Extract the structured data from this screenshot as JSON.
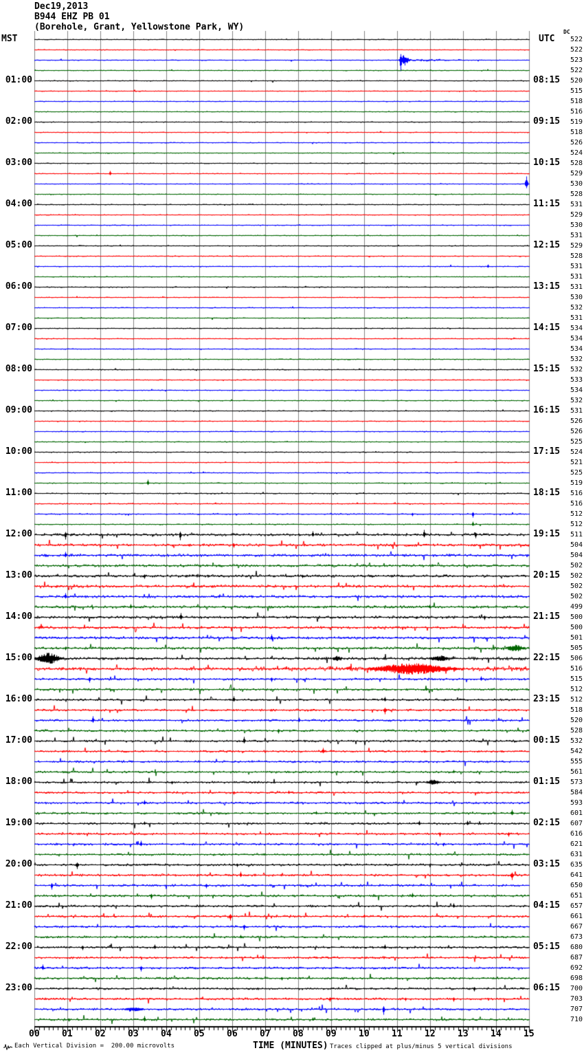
{
  "header": {
    "date": "Dec19,2013",
    "station": "B944 EHZ PB 01",
    "location": "(Borehole, Grant, Yellowstone Park, WY)"
  },
  "labels": {
    "left_axis": "MST",
    "right_axis": "UTC",
    "dc_header": "DC"
  },
  "footer": {
    "left": "Each Vertical Division =  200.00 microvolts",
    "center": "TIME (MINUTES)",
    "right": "Traces clipped at plus/minus 5 vertical divisions"
  },
  "chart_data": {
    "type": "line",
    "subtype": "helicorder-seismogram",
    "minutes_per_line": 15,
    "x_axis": {
      "label": "TIME (MINUTES)",
      "ticks": [
        "00",
        "01",
        "02",
        "03",
        "04",
        "05",
        "06",
        "07",
        "08",
        "09",
        "10",
        "11",
        "12",
        "13",
        "14",
        "15"
      ],
      "range_minutes": [
        0,
        15
      ]
    },
    "trace_color_cycle": [
      "#000000",
      "#ff0000",
      "#0000ff",
      "#006600"
    ],
    "grid_color": "#808080",
    "left_time_labels": [
      "01:00",
      "02:00",
      "03:00",
      "04:00",
      "05:00",
      "06:00",
      "07:00",
      "08:00",
      "09:00",
      "10:00",
      "11:00",
      "12:00",
      "13:00",
      "14:00",
      "15:00",
      "16:00",
      "17:00",
      "18:00",
      "19:00",
      "20:00",
      "21:00",
      "22:00",
      "23:00"
    ],
    "right_time_labels": [
      "08:15",
      "09:15",
      "10:15",
      "11:15",
      "12:15",
      "13:15",
      "14:15",
      "15:15",
      "16:15",
      "17:15",
      "18:15",
      "19:15",
      "20:15",
      "21:15",
      "22:15",
      "23:15",
      "00:15",
      "01:15",
      "02:15",
      "03:15",
      "04:15",
      "05:15",
      "06:15"
    ],
    "dc_values": [
      522,
      522,
      523,
      522,
      520,
      515,
      518,
      516,
      519,
      518,
      526,
      524,
      528,
      529,
      530,
      528,
      531,
      529,
      530,
      531,
      529,
      528,
      531,
      531,
      531,
      530,
      532,
      531,
      534,
      534,
      534,
      532,
      532,
      533,
      534,
      532,
      531,
      526,
      526,
      525,
      524,
      521,
      525,
      519,
      516,
      516,
      512,
      512,
      511,
      504,
      504,
      502,
      502,
      502,
      502,
      499,
      500,
      500,
      501,
      505,
      506,
      516,
      515,
      512,
      512,
      518,
      520,
      528,
      532,
      542,
      555,
      561,
      573,
      584,
      593,
      601,
      607,
      616,
      621,
      631,
      635,
      641,
      650,
      651,
      657,
      661,
      667,
      673,
      680,
      687,
      692,
      698,
      700,
      703,
      707,
      710
    ],
    "noise_amp_by_row": [
      0.7,
      0.7,
      0.7,
      0.7,
      0.7,
      0.7,
      0.7,
      0.7,
      0.7,
      0.7,
      0.7,
      0.7,
      0.7,
      0.7,
      0.7,
      0.7,
      0.75,
      0.75,
      0.75,
      0.75,
      0.75,
      0.75,
      0.75,
      0.75,
      0.75,
      0.75,
      0.75,
      0.75,
      0.75,
      0.75,
      0.75,
      0.75,
      0.8,
      0.8,
      0.8,
      0.8,
      0.8,
      0.8,
      0.8,
      0.8,
      0.8,
      0.8,
      0.8,
      0.8,
      1.0,
      1.0,
      1.0,
      1.0,
      2.4,
      2.4,
      2.4,
      2.4,
      2.4,
      2.4,
      2.4,
      2.4,
      2.4,
      2.4,
      2.4,
      2.4,
      2.4,
      2.6,
      2.0,
      2.0,
      1.9,
      1.9,
      1.9,
      1.9,
      1.9,
      1.9,
      1.9,
      1.9,
      1.9,
      1.9,
      1.9,
      1.9,
      1.9,
      1.9,
      1.9,
      1.9,
      2.0,
      2.0,
      2.0,
      2.0,
      2.0,
      2.0,
      2.0,
      2.0,
      2.0,
      2.0,
      2.0,
      2.0,
      2.0,
      2.0,
      2.0,
      2.0
    ],
    "spike_events": [
      [
        2,
        583,
        2,
        16,
        -1
      ],
      [
        2,
        588,
        6,
        8
      ],
      [
        13,
        160,
        2,
        4
      ],
      [
        14,
        766,
        4,
        11
      ],
      [
        22,
        710,
        2,
        3
      ],
      [
        43,
        215,
        2,
        5
      ],
      [
        46,
        600,
        2,
        3
      ],
      [
        46,
        688,
        2,
        5
      ],
      [
        47,
        688,
        2,
        4
      ],
      [
        48,
        95,
        2,
        7,
        -1
      ],
      [
        48,
        262,
        2,
        8,
        -1
      ],
      [
        48,
        455,
        2,
        5,
        1
      ],
      [
        48,
        617,
        2,
        7,
        1
      ],
      [
        48,
        692,
        2,
        5,
        -1
      ],
      [
        49,
        340,
        2,
        4
      ],
      [
        50,
        95,
        2,
        5
      ],
      [
        52,
        210,
        2,
        4
      ],
      [
        52,
        440,
        2,
        3
      ],
      [
        54,
        95,
        2,
        5
      ],
      [
        55,
        190,
        2,
        4
      ],
      [
        55,
        625,
        2,
        3
      ],
      [
        56,
        263,
        4,
        6
      ],
      [
        56,
        705,
        2,
        4
      ],
      [
        58,
        395,
        2,
        5
      ],
      [
        59,
        95,
        2,
        3
      ],
      [
        59,
        750,
        12,
        5
      ],
      [
        60,
        70,
        16,
        8.5
      ],
      [
        60,
        490,
        6,
        4
      ],
      [
        60,
        640,
        12,
        4.5
      ],
      [
        61,
        600,
        50,
        8.5
      ],
      [
        62,
        130,
        2,
        5
      ],
      [
        62,
        395,
        2,
        4
      ],
      [
        62,
        700,
        2,
        4
      ],
      [
        63,
        340,
        2,
        3
      ],
      [
        63,
        620,
        2,
        3
      ],
      [
        64,
        340,
        2,
        5
      ],
      [
        64,
        560,
        2,
        4
      ],
      [
        65,
        560,
        4,
        6
      ],
      [
        66,
        135,
        2,
        6
      ],
      [
        66,
        435,
        2,
        4
      ],
      [
        67,
        405,
        2,
        4
      ],
      [
        68,
        355,
        2,
        6
      ],
      [
        69,
        470,
        4,
        5
      ],
      [
        71,
        660,
        2,
        3
      ],
      [
        72,
        630,
        10,
        4
      ],
      [
        72,
        250,
        2,
        3
      ],
      [
        73,
        340,
        2,
        3
      ],
      [
        73,
        420,
        2,
        3
      ],
      [
        74,
        210,
        2,
        4
      ],
      [
        75,
        745,
        4,
        5
      ],
      [
        75,
        460,
        2,
        3
      ],
      [
        76,
        210,
        2,
        3
      ],
      [
        76,
        610,
        2,
        4
      ],
      [
        76,
        680,
        2,
        4
      ],
      [
        77,
        640,
        2,
        4
      ],
      [
        77,
        740,
        2,
        4
      ],
      [
        78,
        205,
        2,
        5
      ],
      [
        78,
        645,
        2,
        3
      ],
      [
        80,
        112,
        4,
        6
      ],
      [
        80,
        345,
        2,
        3
      ],
      [
        81,
        350,
        2,
        5
      ],
      [
        81,
        745,
        3,
        7
      ],
      [
        82,
        75,
        2,
        6
      ],
      [
        82,
        300,
        2,
        4
      ],
      [
        83,
        220,
        2,
        5
      ],
      [
        83,
        600,
        2,
        4
      ],
      [
        84,
        660,
        2,
        4
      ],
      [
        85,
        335,
        4,
        6
      ],
      [
        85,
        530,
        2,
        3
      ],
      [
        86,
        355,
        2,
        5
      ],
      [
        87,
        350,
        2,
        3
      ],
      [
        88,
        120,
        2,
        4
      ],
      [
        88,
        225,
        2,
        4
      ],
      [
        88,
        560,
        2,
        4
      ],
      [
        90,
        62,
        2,
        5
      ],
      [
        90,
        205,
        2,
        5
      ],
      [
        91,
        410,
        2,
        3
      ],
      [
        92,
        690,
        2,
        4
      ],
      [
        93,
        480,
        2,
        4
      ],
      [
        93,
        590,
        2,
        3
      ],
      [
        93,
        660,
        2,
        4
      ],
      [
        94,
        195,
        14,
        3
      ],
      [
        94,
        558,
        2,
        8,
        -1
      ],
      [
        95,
        100,
        2,
        3
      ],
      [
        95,
        210,
        2,
        5
      ],
      [
        95,
        455,
        2,
        3
      ]
    ],
    "band_events": [
      [
        2,
        575,
        660,
        2.5
      ],
      [
        57,
        555,
        645,
        2.5
      ],
      [
        59,
        695,
        770,
        4
      ],
      [
        60,
        430,
        770,
        3.2
      ],
      [
        61,
        330,
        770,
        4
      ]
    ],
    "footnotes": {
      "vertical_division": "200.00 microvolts",
      "clipping": "plus/minus 5 vertical divisions"
    }
  }
}
